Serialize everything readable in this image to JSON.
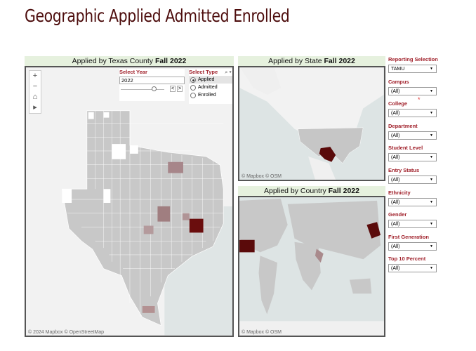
{
  "title": "Geographic Applied Admitted Enrolled",
  "county_panel": {
    "title": "Applied by Texas County",
    "term": "Fall 2022",
    "attribution": "© 2024 Mapbox  © OpenStreetMap",
    "controls": {
      "zoom_in": "+",
      "zoom_out": "−",
      "home": "⌂",
      "pan": "▸"
    },
    "year": {
      "label": "Select Year",
      "value": "2022",
      "prev": "<",
      "next": ">"
    },
    "type": {
      "label": "Select Type",
      "options": [
        "Applied",
        "Admitted",
        "Enrolled"
      ],
      "selected": "Applied"
    }
  },
  "state_panel": {
    "title": "Applied by State",
    "term": "Fall 2022",
    "attribution": "© Mapbox  © OSM"
  },
  "country_panel": {
    "title": "Applied by Country",
    "term": "Fall 2022",
    "attribution": "© Mapbox  © OSM"
  },
  "filters": [
    {
      "label": "Reporting Selection",
      "value": "TAMU"
    },
    {
      "label": "Campus",
      "value": "(All)"
    },
    {
      "label": "College",
      "value": "(All)"
    },
    {
      "label": "Department",
      "value": "(All)"
    },
    {
      "label": "Student Level",
      "value": "(All)"
    },
    {
      "label": "Entry Status",
      "value": "(All)"
    },
    {
      "label": "Ethnicity",
      "value": "(All)"
    },
    {
      "label": "Gender",
      "value": "(All)"
    },
    {
      "label": "First Generation",
      "value": "(All)"
    },
    {
      "label": "Top 10 Percent",
      "value": "(All)"
    }
  ],
  "colors": {
    "accent": "#a0202a",
    "dark": "#5a0a0a",
    "title": "#4d0d0d"
  }
}
